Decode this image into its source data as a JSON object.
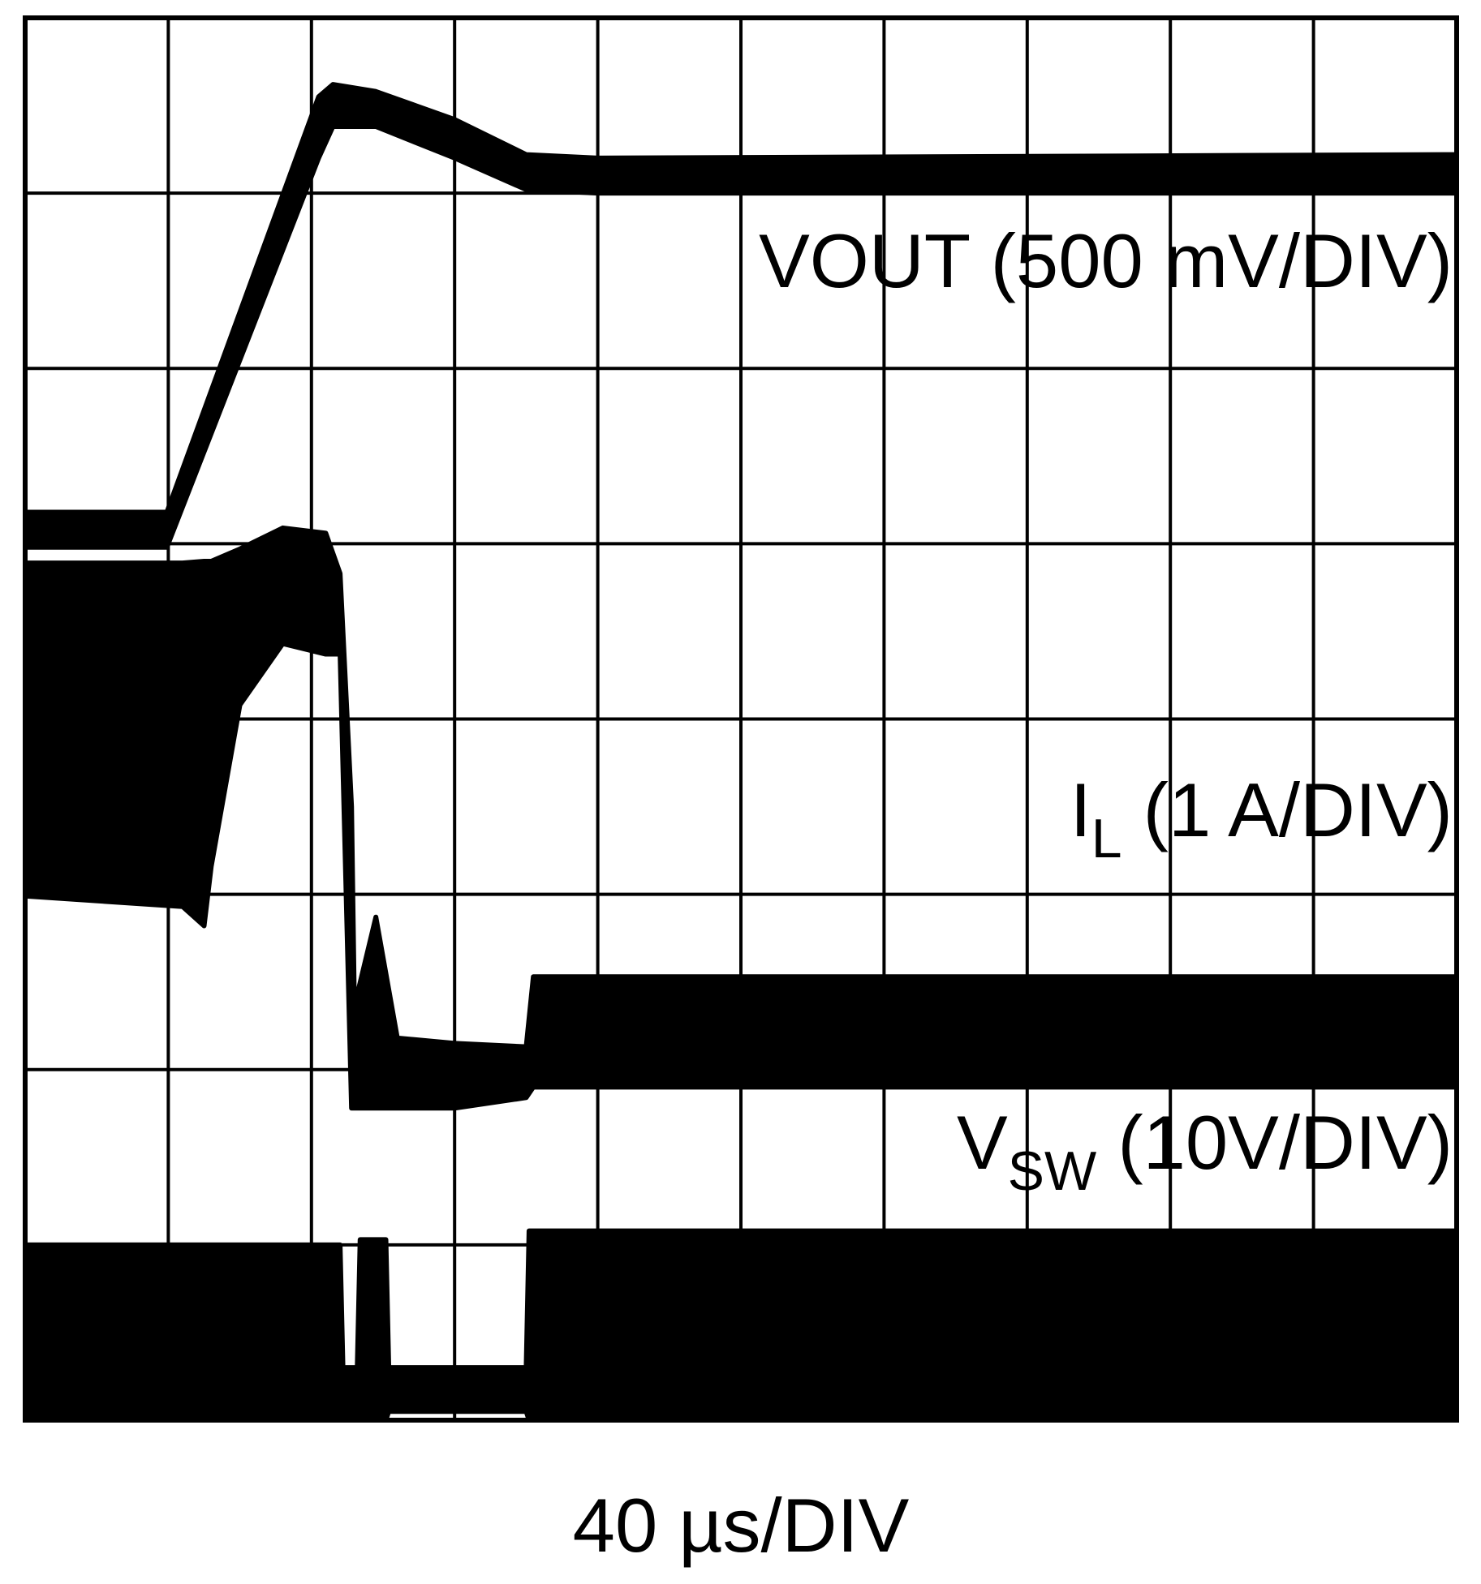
{
  "chart_data": {
    "type": "scope",
    "x_label": "40 µs/DIV",
    "xlim": [
      0,
      10
    ],
    "ylim": [
      0,
      8
    ],
    "xticks": [
      0,
      1,
      2,
      3,
      4,
      5,
      6,
      7,
      8,
      9,
      10
    ],
    "yticks": [
      0,
      1,
      2,
      3,
      4,
      5,
      6,
      7,
      8
    ],
    "grid": true,
    "color": "#000000",
    "traces": [
      {
        "label": {
          "text": "VOUT (500 mV/DIV)"
        },
        "x": [
          0,
          0.99,
          2.05,
          2.15,
          2.45,
          3.0,
          3.5,
          4.0,
          10
        ],
        "upper": [
          5.18,
          5.18,
          7.55,
          7.62,
          7.58,
          7.42,
          7.22,
          7.2,
          7.22
        ],
        "lower": [
          4.98,
          4.98,
          7.2,
          7.38,
          7.38,
          7.2,
          7.02,
          7.0,
          7.0
        ]
      },
      {
        "label": {
          "text": "I",
          "sub": "L",
          "rest": " (1 A/DIV)"
        },
        "x": [
          0,
          1.1,
          1.25,
          1.3,
          1.5,
          1.8,
          2.1,
          2.2,
          2.28,
          2.3,
          2.45,
          2.6,
          3.0,
          3.5,
          3.55,
          10
        ],
        "upper": [
          4.89,
          4.89,
          4.9,
          4.9,
          4.97,
          5.09,
          5.06,
          4.83,
          3.5,
          2.36,
          2.87,
          2.18,
          2.15,
          2.13,
          2.53,
          2.53
        ],
        "lower": [
          2.99,
          2.93,
          2.82,
          3.16,
          4.08,
          4.43,
          4.37,
          4.37,
          1.78,
          1.78,
          1.78,
          1.78,
          1.78,
          1.84,
          1.9,
          1.9
        ]
      },
      {
        "label": {
          "text": "V",
          "sub": "SW",
          "rest": " (10V/DIV)"
        },
        "x": [
          0,
          2.2,
          2.22,
          2.32,
          2.34,
          2.52,
          2.54,
          3.5,
          3.52,
          10
        ],
        "upper": [
          1.0,
          1.0,
          0.3,
          0.3,
          1.03,
          1.03,
          0.3,
          0.3,
          1.08,
          1.08
        ],
        "lower": [
          0,
          0,
          0,
          0,
          0,
          0,
          0.05,
          0.05,
          0,
          0
        ]
      }
    ]
  }
}
